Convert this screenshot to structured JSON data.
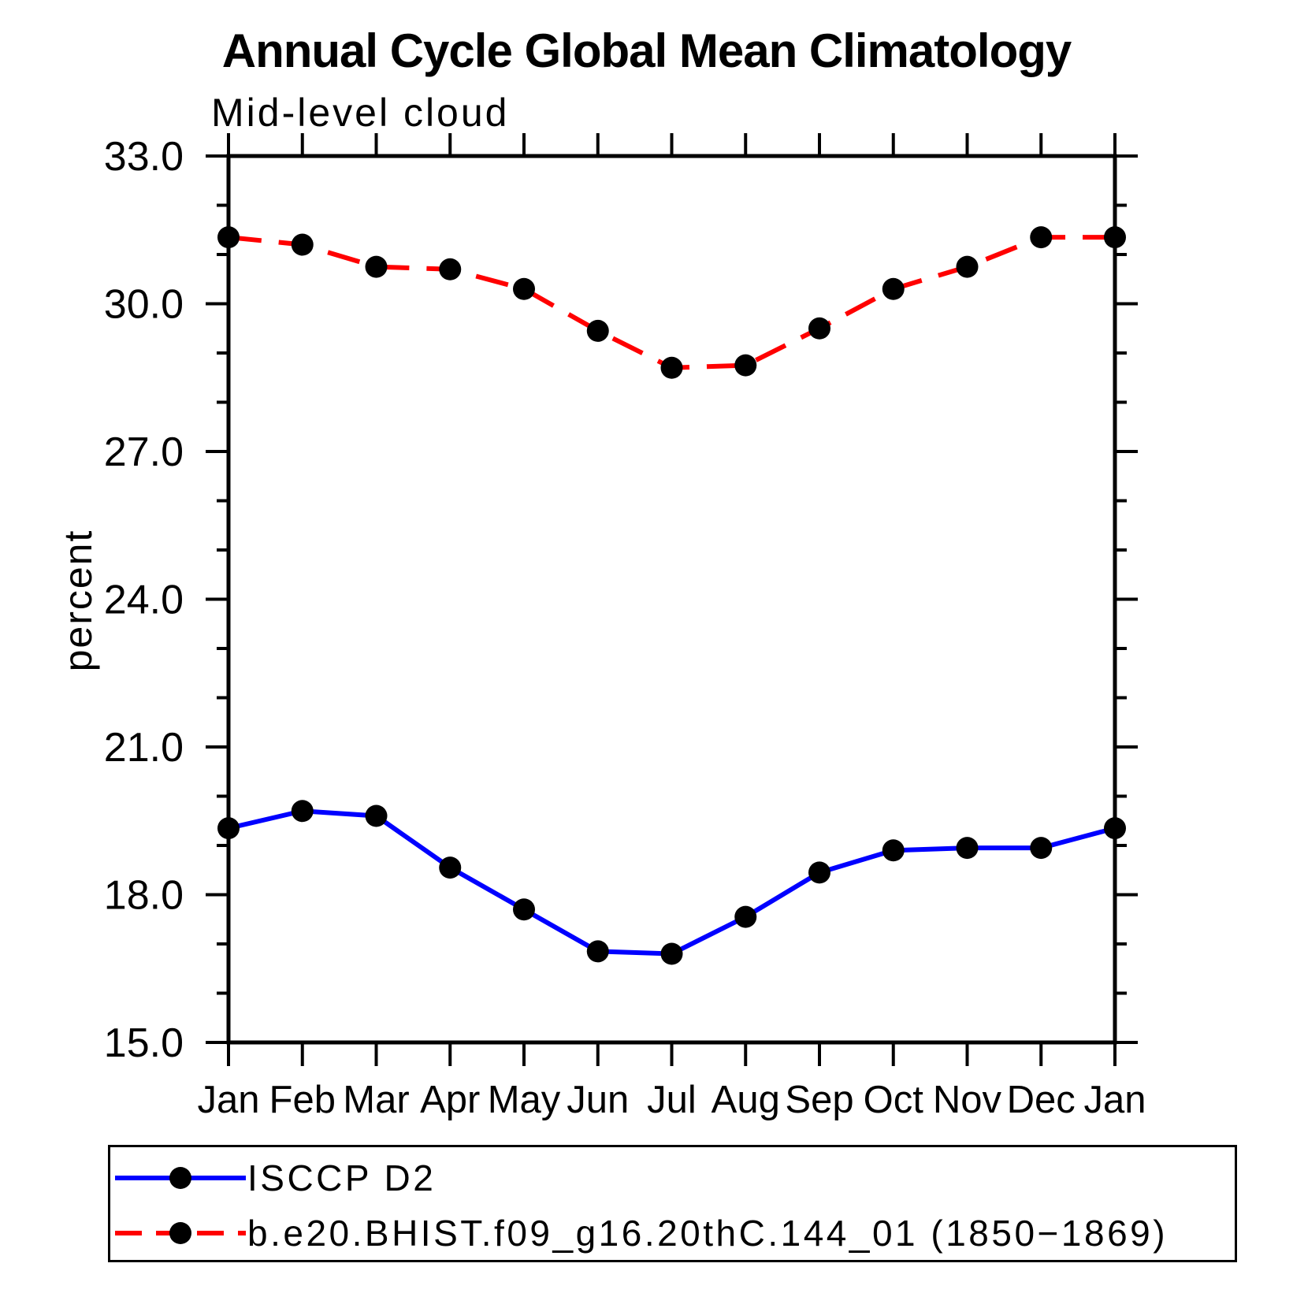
{
  "chart_data": {
    "type": "line",
    "title": "Annual Cycle Global Mean Climatology",
    "subtitle": "Mid-level cloud",
    "xlabel": "",
    "ylabel": "percent",
    "categories": [
      "Jan",
      "Feb",
      "Mar",
      "Apr",
      "May",
      "Jun",
      "Jul",
      "Aug",
      "Sep",
      "Oct",
      "Nov",
      "Dec",
      "Jan"
    ],
    "ylim": [
      15.0,
      33.0
    ],
    "ytick_major": {
      "values": [
        15,
        18,
        21,
        24,
        27,
        30,
        33
      ],
      "labels": [
        "15.0",
        "18.0",
        "21.0",
        "24.0",
        "27.0",
        "30.0",
        "33.0"
      ]
    },
    "ytick_minor_values": [
      16,
      17,
      19,
      20,
      22,
      23,
      25,
      26,
      28,
      29,
      31,
      32
    ],
    "grid": false,
    "legend_position": "bottom-left-box",
    "axis_color": "#000000",
    "marker_color": "#000000",
    "series": [
      {
        "name": "ISCCP D2",
        "color": "#0000ff",
        "line_style": "solid",
        "marker": "circle",
        "values": [
          19.35,
          19.7,
          19.6,
          18.55,
          17.7,
          16.85,
          16.8,
          17.55,
          18.45,
          18.9,
          18.95,
          18.95,
          19.35
        ]
      },
      {
        "name": "b.e20.BHIST.f09_g16.20thC.144_01 (1850−1869)",
        "color": "#ff0000",
        "line_style": "dashed",
        "marker": "circle",
        "values": [
          31.35,
          31.2,
          30.75,
          30.7,
          30.3,
          29.45,
          28.7,
          28.75,
          29.5,
          30.3,
          30.75,
          31.35,
          31.35
        ]
      }
    ]
  }
}
